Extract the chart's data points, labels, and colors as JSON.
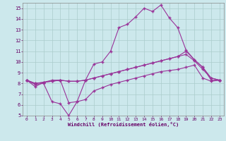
{
  "bg_color": "#cce8ec",
  "grid_color": "#aacccc",
  "line_color": "#993399",
  "xlabel": "Windchill (Refroidissement éolien,°C)",
  "xlabel_color": "#660066",
  "tick_color": "#660066",
  "xlim": [
    -0.5,
    23.5
  ],
  "ylim": [
    5,
    15.5
  ],
  "yticks": [
    5,
    6,
    7,
    8,
    9,
    10,
    11,
    12,
    13,
    14,
    15
  ],
  "xticks": [
    0,
    1,
    2,
    3,
    4,
    5,
    6,
    7,
    8,
    9,
    10,
    11,
    12,
    13,
    14,
    15,
    16,
    17,
    18,
    19,
    20,
    21,
    22,
    23
  ],
  "line1_x": [
    0,
    1,
    2,
    3,
    4,
    5,
    6,
    7,
    8,
    9,
    10,
    11,
    12,
    13,
    14,
    15,
    16,
    17,
    18,
    19,
    20,
    21,
    22,
    23
  ],
  "line1_y": [
    8.3,
    7.7,
    8.1,
    8.3,
    8.3,
    6.2,
    6.3,
    8.3,
    9.8,
    10.0,
    11.0,
    13.2,
    13.5,
    14.2,
    15.0,
    14.7,
    15.3,
    14.1,
    13.2,
    11.1,
    10.2,
    9.5,
    8.3,
    8.3
  ],
  "line2_x": [
    0,
    1,
    2,
    3,
    4,
    5,
    6,
    7,
    8,
    9,
    10,
    11,
    12,
    13,
    14,
    15,
    16,
    17,
    18,
    19,
    20,
    21,
    22,
    23
  ],
  "line2_y": [
    8.3,
    8.0,
    8.1,
    8.2,
    8.3,
    8.2,
    8.2,
    8.3,
    8.5,
    8.7,
    8.9,
    9.1,
    9.3,
    9.5,
    9.7,
    9.9,
    10.1,
    10.3,
    10.5,
    11.0,
    10.2,
    9.5,
    8.5,
    8.3
  ],
  "line3_x": [
    0,
    1,
    2,
    3,
    4,
    5,
    6,
    7,
    8,
    9,
    10,
    11,
    12,
    13,
    14,
    15,
    16,
    17,
    18,
    19,
    20,
    21,
    22,
    23
  ],
  "line3_y": [
    8.3,
    8.0,
    8.1,
    8.2,
    8.3,
    8.2,
    8.2,
    8.3,
    8.5,
    8.7,
    8.9,
    9.1,
    9.3,
    9.5,
    9.7,
    9.9,
    10.1,
    10.3,
    10.5,
    10.7,
    10.1,
    9.3,
    8.5,
    8.3
  ],
  "line4_x": [
    0,
    1,
    2,
    3,
    4,
    5,
    6,
    7,
    8,
    9,
    10,
    11,
    12,
    13,
    14,
    15,
    16,
    17,
    18,
    19,
    20,
    21,
    22,
    23
  ],
  "line4_y": [
    8.3,
    7.9,
    8.0,
    6.3,
    6.1,
    5.0,
    6.3,
    6.5,
    7.3,
    7.6,
    7.9,
    8.1,
    8.3,
    8.5,
    8.7,
    8.9,
    9.1,
    9.2,
    9.3,
    9.5,
    9.7,
    8.5,
    8.2,
    8.3
  ]
}
